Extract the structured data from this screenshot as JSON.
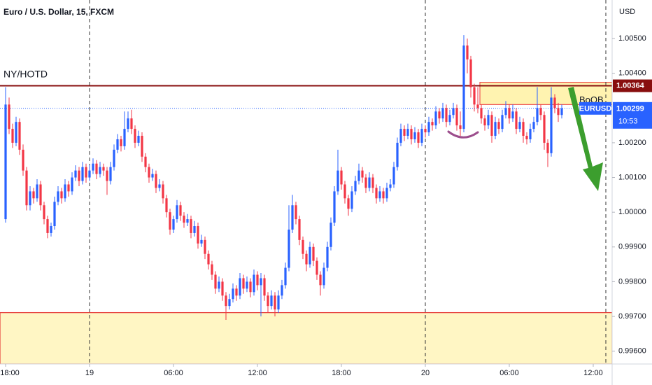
{
  "chart_data": {
    "type": "candlestick",
    "title": "Euro / U.S. Dollar, 15, FXCM",
    "symbol": "EURUSD",
    "currency": "USD",
    "countdown": "10:53",
    "up_color": "#2962ff",
    "down_color": "#f23645",
    "xlim": [
      -1.6,
      173.4
    ],
    "ylim": [
      0.99563,
      1.00611
    ],
    "xticks": [
      {
        "value": 0,
        "label": "18:00"
      },
      {
        "value": 24,
        "label": "19"
      },
      {
        "value": 48,
        "label": "06:00"
      },
      {
        "value": 72,
        "label": "12:00"
      },
      {
        "value": 96,
        "label": "18:00"
      },
      {
        "value": 120,
        "label": "20"
      },
      {
        "value": 144,
        "label": "06:00"
      },
      {
        "value": 168,
        "label": "12:00"
      }
    ],
    "yticks": [
      {
        "value": 1.005,
        "label": "1.00500"
      },
      {
        "value": 1.004,
        "label": "1.00400"
      },
      {
        "value": 1.002,
        "label": "1.00200"
      },
      {
        "value": 1.001,
        "label": "1.00100"
      },
      {
        "value": 1.0,
        "label": "1.00000"
      },
      {
        "value": 0.999,
        "label": "0.99900"
      },
      {
        "value": 0.998,
        "label": "0.99800"
      },
      {
        "value": 0.997,
        "label": "0.99700"
      },
      {
        "value": 0.996,
        "label": "0.99600"
      }
    ],
    "levels": [
      {
        "name": "NY/HOTD",
        "value": 1.00364,
        "color": "#880e0e"
      },
      {
        "value": 0.99711,
        "color": "#e53935"
      }
    ],
    "zones": [
      {
        "name": "BoOB",
        "start": 135.6,
        "from": 1.0031,
        "to": 1.00374,
        "color": "#fff3b0",
        "border": "#ef5350"
      },
      {
        "start": -1.6,
        "from": 0.99563,
        "to": 0.99711,
        "color": "#fff6c4",
        "border": "#e53935"
      }
    ],
    "open": [
      0.9998,
      1.0031,
      1.0024,
      1.002,
      1.0026,
      1.0018,
      1.0012,
      1.0002,
      1.0006,
      1.0004,
      1.0008,
      1.0002,
      0.9998,
      0.9994,
      0.9996,
      1.0003,
      1.0006,
      1.0004,
      1.0008,
      1.0006,
      1.001,
      1.0012,
      1.0009,
      1.0013,
      1.001,
      1.0012,
      1.0014,
      1.0011,
      1.0013,
      1.0012,
      1.0009,
      1.0013,
      1.0018,
      1.0021,
      1.0019,
      1.0024,
      1.0027,
      1.0024,
      1.002,
      1.0022,
      1.0016,
      1.0013,
      1.001,
      1.0011,
      1.0007,
      1.0008,
      1.0004,
      1.0,
      0.9995,
      0.9998,
      1.0002,
      0.9999,
      0.9997,
      0.9998,
      0.9994,
      0.9996,
      0.9991,
      0.9992,
      0.9988,
      0.9985,
      0.9982,
      0.9978,
      0.998,
      0.9976,
      0.9973,
      0.9975,
      0.9978,
      0.9976,
      0.9981,
      0.9978,
      0.998,
      0.9977,
      0.9982,
      0.9979,
      0.9981,
      0.9976,
      0.9973,
      0.9976,
      0.9972,
      0.9976,
      0.9979,
      0.9984,
      0.9995,
      1.0002,
      0.9998,
      0.9992,
      0.9988,
      0.9985,
      0.999,
      0.9986,
      0.9982,
      0.9979,
      0.9984,
      0.999,
      0.9997,
      1.0006,
      1.0012,
      1.0008,
      1.0004,
      1.0001,
      1.0006,
      1.0009,
      1.0012,
      1.001,
      1.0007,
      1.001,
      1.0007,
      1.0004,
      1.0006,
      1.0004,
      1.0007,
      1.0008,
      1.0013,
      1.002,
      1.0024,
      1.0022,
      1.0024,
      1.0021,
      1.0023,
      1.002,
      1.0024,
      1.0023,
      1.0026,
      1.0025,
      1.0029,
      1.0027,
      1.003,
      1.0026,
      1.0028,
      1.003,
      1.0025,
      1.0024,
      1.0048,
      1.0044,
      1.0036,
      1.0031,
      1.003,
      1.0027,
      1.0025,
      1.0028,
      1.0022,
      1.0026,
      1.0024,
      1.0028,
      1.003,
      1.0027,
      1.0029,
      1.0024,
      1.0026,
      1.0022,
      1.0021,
      1.0024,
      1.0026,
      1.003,
      1.0028,
      1.002,
      1.0017,
      1.0033,
      1.003,
      1.0028
    ],
    "high": [
      1.0036,
      1.0033,
      1.00255,
      1.00275,
      1.0027,
      1.00195,
      1.0013,
      1.00075,
      1.0007,
      1.00095,
      1.0009,
      1.0003,
      0.9999,
      0.9997,
      1.00045,
      1.00075,
      1.0007,
      1.00095,
      1.0009,
      1.00115,
      1.00135,
      1.0013,
      1.00145,
      1.0014,
      1.00135,
      1.00155,
      1.0015,
      1.00145,
      1.0014,
      1.0013,
      1.00145,
      1.00195,
      1.00225,
      1.0022,
      1.0029,
      1.0029,
      1.00295,
      1.0025,
      1.00235,
      1.0023,
      1.0017,
      1.0014,
      1.00125,
      1.0012,
      1.00095,
      1.0009,
      1.0005,
      1.0001,
      0.9999,
      1.00035,
      1.0003,
      1.0,
      0.99995,
      0.9999,
      0.99975,
      0.9997,
      0.99935,
      0.9993,
      0.9989,
      0.9986,
      0.9983,
      0.99815,
      0.9981,
      0.9977,
      0.99765,
      0.99795,
      0.9979,
      0.99825,
      0.9982,
      0.99815,
      0.9981,
      0.99835,
      0.9983,
      0.99825,
      0.9982,
      0.9977,
      0.99775,
      0.9977,
      0.99775,
      0.99805,
      0.99855,
      1.0002,
      1.0005,
      1.0003,
      0.9999,
      0.9993,
      0.9989,
      0.99915,
      0.9991,
      0.9987,
      0.9983,
      0.99855,
      0.99915,
      0.99985,
      1.00075,
      1.0018,
      1.0013,
      1.0009,
      1.0005,
      1.00075,
      1.00105,
      1.0014,
      1.0013,
      1.0011,
      1.00115,
      1.0011,
      1.0008,
      1.00075,
      1.0007,
      1.00085,
      1.00095,
      1.00145,
      1.00215,
      1.00255,
      1.0025,
      1.00255,
      1.0025,
      1.00245,
      1.0024,
      1.00255,
      1.0025,
      1.00275,
      1.0027,
      1.00305,
      1.003,
      1.00315,
      1.0031,
      1.00295,
      1.00315,
      1.0031,
      1.0029,
      1.0051,
      1.005,
      1.0045,
      1.0037,
      1.0036,
      1.0031,
      1.0028,
      1.00295,
      1.0029,
      1.00275,
      1.0027,
      1.00295,
      1.0032,
      1.0031,
      1.0031,
      1.003,
      1.00275,
      1.0027,
      1.0023,
      1.00255,
      1.00275,
      1.0036,
      1.0031,
      1.0029,
      1.0021,
      1.0036,
      1.0034,
      1.00315,
      1.0031
    ],
    "low": [
      0.9997,
      1.00225,
      1.00185,
      1.0019,
      1.00165,
      1.00105,
      1.00005,
      1.00005,
      1.00025,
      1.0003,
      1.00005,
      0.99965,
      0.99925,
      0.9993,
      0.9995,
      1.0002,
      1.00025,
      1.0003,
      1.00045,
      1.0005,
      1.0009,
      1.00075,
      1.0008,
      1.00085,
      1.0009,
      1.0011,
      1.00095,
      1.001,
      1.00105,
      1.0005,
      1.0008,
      1.0012,
      1.0017,
      1.00175,
      1.0018,
      1.0023,
      1.00225,
      1.00185,
      1.0019,
      1.00145,
      1.00115,
      1.00085,
      1.0009,
      1.00055,
      1.0006,
      1.00025,
      0.99985,
      0.99935,
      0.9994,
      0.9997,
      0.99975,
      0.99955,
      0.9996,
      0.99925,
      0.9993,
      0.99895,
      0.999,
      0.99865,
      0.99835,
      0.99805,
      0.99765,
      0.9977,
      0.99745,
      0.9969,
      0.9972,
      0.9974,
      0.99745,
      0.9975,
      0.99765,
      0.9977,
      0.99755,
      0.9976,
      0.99775,
      0.997,
      0.99745,
      0.9971,
      0.9972,
      0.997,
      0.9971,
      0.9975,
      0.9978,
      0.9983,
      0.9994,
      0.99965,
      0.99905,
      0.99865,
      0.9983,
      0.9984,
      0.99845,
      0.99805,
      0.9976,
      0.9978,
      0.9983,
      0.9989,
      0.9996,
      1.0005,
      1.00065,
      1.00025,
      0.9999,
      1.0,
      1.0005,
      1.0008,
      1.00085,
      1.00055,
      1.0006,
      1.00055,
      1.00025,
      1.0003,
      1.00025,
      1.0003,
      1.0006,
      1.0007,
      1.0012,
      1.0019,
      1.00205,
      1.0021,
      1.00195,
      1.002,
      1.00185,
      1.0019,
      1.00215,
      1.0022,
      1.00235,
      1.0024,
      1.00255,
      1.0026,
      1.00245,
      1.0025,
      1.0027,
      1.00235,
      1.0022,
      1.0023,
      1.004,
      1.0033,
      1.0029,
      1.00285,
      1.00255,
      1.00235,
      1.0024,
      1.002,
      1.0021,
      1.00225,
      1.0023,
      1.0027,
      1.00255,
      1.0026,
      1.00225,
      1.0023,
      1.002,
      1.00195,
      1.002,
      1.0023,
      1.0025,
      1.00265,
      1.0018,
      1.0013,
      1.0016,
      1.00285,
      1.0026,
      1.0027
    ],
    "close": [
      1.0031,
      1.0024,
      1.002,
      1.0026,
      1.0018,
      1.0012,
      1.0002,
      1.0006,
      1.0004,
      1.0008,
      1.0002,
      0.9998,
      0.9994,
      0.9996,
      1.0003,
      1.0006,
      1.0004,
      1.0008,
      1.0006,
      1.001,
      1.0012,
      1.0009,
      1.0013,
      1.001,
      1.0012,
      1.0014,
      1.0011,
      1.0013,
      1.0012,
      1.0009,
      1.0013,
      1.0018,
      1.0021,
      1.0019,
      1.0024,
      1.0027,
      1.0024,
      1.002,
      1.0022,
      1.0016,
      1.0013,
      1.001,
      1.0011,
      1.0007,
      1.0008,
      1.0004,
      1.0,
      0.9995,
      0.9998,
      1.0002,
      0.9999,
      0.9997,
      0.9998,
      0.9994,
      0.9996,
      0.9991,
      0.9992,
      0.9988,
      0.9985,
      0.9982,
      0.9978,
      0.998,
      0.9976,
      0.9973,
      0.9975,
      0.9978,
      0.9976,
      0.9981,
      0.9978,
      0.998,
      0.9977,
      0.9982,
      0.9979,
      0.9981,
      0.9976,
      0.9973,
      0.9976,
      0.9972,
      0.9976,
      0.9979,
      0.9984,
      0.9995,
      1.0002,
      0.9998,
      0.9992,
      0.9988,
      0.9985,
      0.999,
      0.9986,
      0.9982,
      0.9979,
      0.9984,
      0.999,
      0.9997,
      1.0006,
      1.0012,
      1.0008,
      1.0004,
      1.0001,
      1.0006,
      1.0009,
      1.0012,
      1.001,
      1.0007,
      1.001,
      1.0007,
      1.0004,
      1.0006,
      1.0004,
      1.0007,
      1.0008,
      1.0013,
      1.002,
      1.0024,
      1.0022,
      1.0024,
      1.0021,
      1.0023,
      1.002,
      1.0024,
      1.0023,
      1.0026,
      1.0025,
      1.0029,
      1.0027,
      1.003,
      1.0026,
      1.0028,
      1.003,
      1.0025,
      1.0024,
      1.0048,
      1.0044,
      1.0036,
      1.0031,
      1.003,
      1.0027,
      1.0025,
      1.0028,
      1.0022,
      1.0026,
      1.0024,
      1.0028,
      1.003,
      1.0027,
      1.0029,
      1.0024,
      1.0026,
      1.0022,
      1.0021,
      1.0024,
      1.0026,
      1.003,
      1.0028,
      1.002,
      1.0017,
      1.0033,
      1.003,
      1.0028,
      1.00299
    ]
  }
}
